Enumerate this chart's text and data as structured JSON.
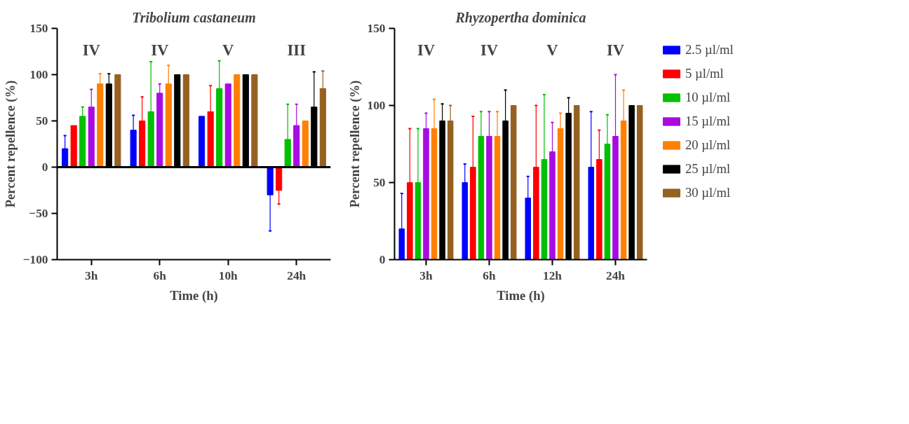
{
  "chart_data": [
    {
      "type": "bar",
      "title": "Tribolium castaneum",
      "xlabel": "Time (h)",
      "ylabel": "Percent repellence (%)",
      "categories": [
        "3h",
        "6h",
        "10h",
        "24h"
      ],
      "ylim": [
        -100,
        150
      ],
      "yticks": [
        -100,
        -50,
        0,
        50,
        100,
        150
      ],
      "grid": false,
      "ref_lines": [
        {
          "axis": "y",
          "value": 0,
          "color": "#000000"
        }
      ],
      "annotations": [
        "IV",
        "IV",
        "V",
        "III"
      ],
      "series": [
        {
          "color": "#0000ff",
          "values": [
            20,
            40,
            55,
            -30
          ],
          "errors": [
            [
              20,
              34
            ],
            [
              40,
              56
            ],
            null,
            [
              -69,
              -30
            ]
          ]
        },
        {
          "color": "#ff0000",
          "values": [
            45,
            50,
            60,
            -25
          ],
          "errors": [
            null,
            [
              50,
              76
            ],
            [
              60,
              88
            ],
            [
              -40,
              -25
            ]
          ]
        },
        {
          "color": "#00c000",
          "values": [
            55,
            60,
            85,
            30
          ],
          "errors": [
            [
              55,
              65
            ],
            [
              60,
              114
            ],
            [
              85,
              115
            ],
            [
              30,
              68
            ]
          ]
        },
        {
          "color": "#a80ce0",
          "values": [
            65,
            80,
            90,
            45
          ],
          "errors": [
            [
              65,
              84
            ],
            [
              80,
              90
            ],
            null,
            [
              45,
              68
            ]
          ]
        },
        {
          "color": "#ff8000",
          "values": [
            90,
            90,
            100,
            50
          ],
          "errors": [
            [
              90,
              101
            ],
            [
              90,
              110
            ],
            null,
            null
          ]
        },
        {
          "color": "#000000",
          "values": [
            90,
            100,
            100,
            65
          ],
          "errors": [
            [
              90,
              101
            ],
            null,
            null,
            [
              65,
              103
            ]
          ]
        },
        {
          "color": "#956020",
          "values": [
            100,
            100,
            100,
            85
          ],
          "errors": [
            null,
            null,
            null,
            [
              85,
              104
            ]
          ]
        }
      ]
    },
    {
      "type": "bar",
      "title": "Rhyzopertha dominica",
      "xlabel": "Time (h)",
      "ylabel": "Percent repellence (%)",
      "categories": [
        "3h",
        "6h",
        "12h",
        "24h"
      ],
      "ylim": [
        0,
        150
      ],
      "yticks": [
        0,
        50,
        100,
        150
      ],
      "grid": false,
      "legend": "right",
      "annotations": [
        "IV",
        "IV",
        "V",
        "IV"
      ],
      "series": [
        {
          "name": "2.5 µl/ml",
          "color": "#0000ff",
          "values": [
            20,
            50,
            40,
            60
          ],
          "errors": [
            [
              20,
              43
            ],
            [
              50,
              62
            ],
            [
              40,
              54
            ],
            [
              60,
              96
            ]
          ]
        },
        {
          "name": "5 µl/ml",
          "color": "#ff0000",
          "values": [
            50,
            60,
            60,
            65
          ],
          "errors": [
            [
              50,
              85
            ],
            [
              60,
              93
            ],
            [
              60,
              100
            ],
            [
              65,
              84
            ]
          ]
        },
        {
          "name": "10 µl/ml",
          "color": "#00c000",
          "values": [
            50,
            80,
            65,
            75
          ],
          "errors": [
            [
              50,
              85
            ],
            [
              80,
              96
            ],
            [
              65,
              107
            ],
            [
              75,
              94
            ]
          ]
        },
        {
          "name": "15 µl/ml",
          "color": "#a80ce0",
          "values": [
            85,
            80,
            70,
            80
          ],
          "errors": [
            [
              85,
              95
            ],
            [
              80,
              96
            ],
            [
              70,
              89
            ],
            [
              80,
              120
            ]
          ]
        },
        {
          "name": "20 µl/ml",
          "color": "#ff8000",
          "values": [
            85,
            80,
            85,
            90
          ],
          "errors": [
            [
              85,
              104
            ],
            [
              80,
              96
            ],
            [
              85,
              95
            ],
            [
              90,
              110
            ]
          ]
        },
        {
          "name": "25 µl/ml",
          "color": "#000000",
          "values": [
            90,
            90,
            95,
            100
          ],
          "errors": [
            [
              90,
              101
            ],
            [
              90,
              110
            ],
            [
              95,
              105
            ],
            null
          ]
        },
        {
          "name": "30 µl/ml",
          "color": "#956020",
          "values": [
            90,
            100,
            100,
            100
          ],
          "errors": [
            [
              90,
              100
            ],
            null,
            null,
            null
          ]
        }
      ]
    }
  ]
}
